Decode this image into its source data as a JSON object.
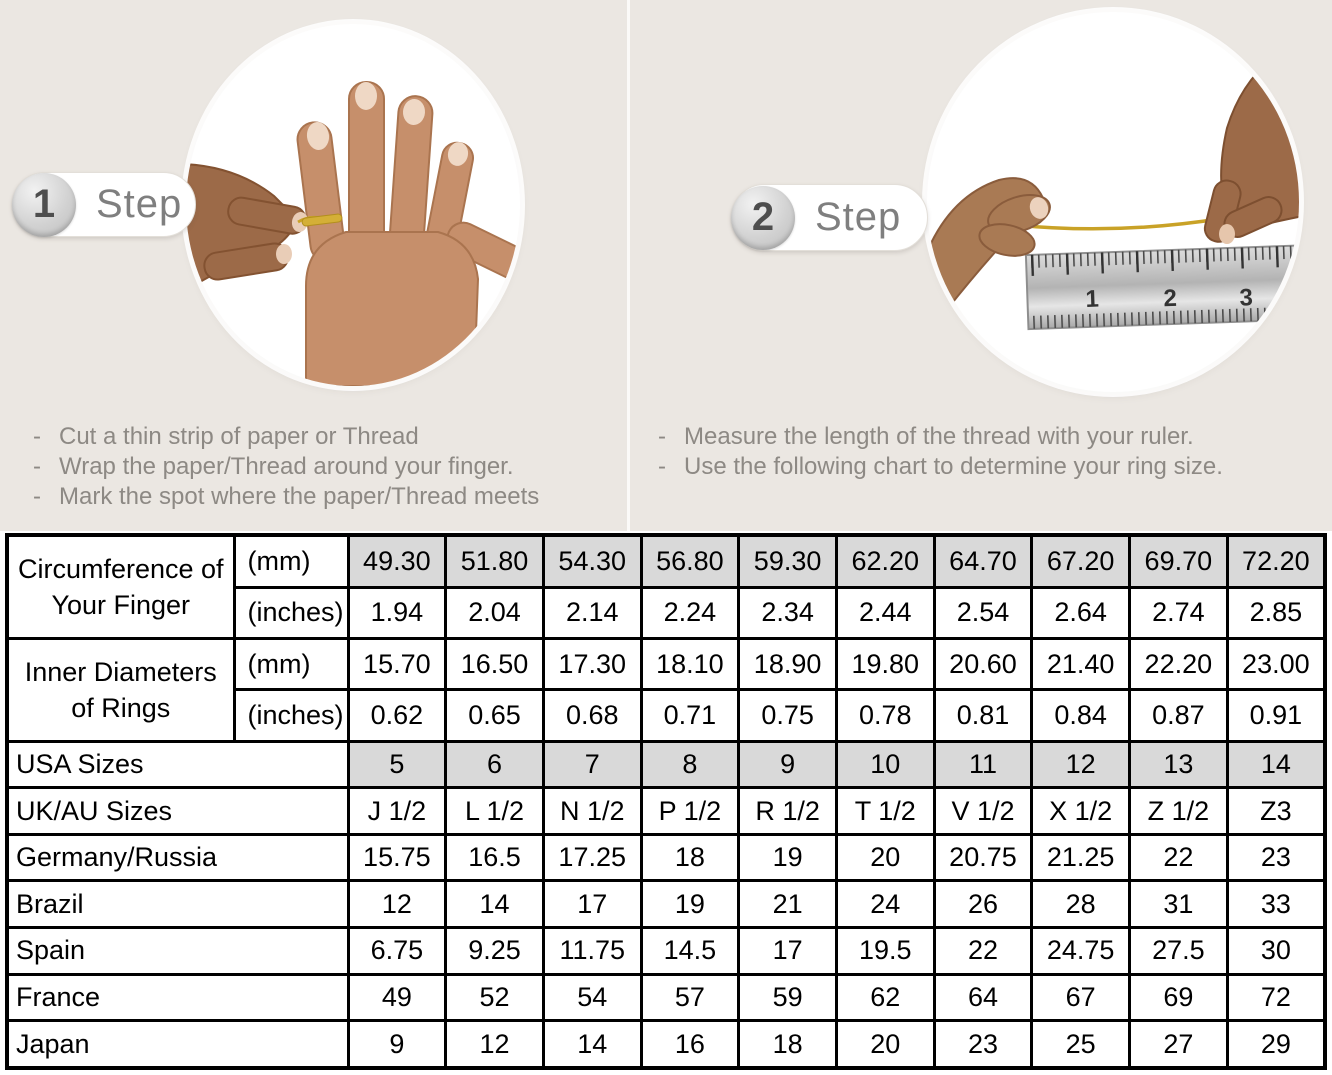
{
  "steps": [
    {
      "number": "1",
      "label": "Step",
      "bullets": [
        "Cut a thin strip of paper or Thread",
        "Wrap the paper/Thread around your finger.",
        "Mark the spot where the paper/Thread meets"
      ]
    },
    {
      "number": "2",
      "label": "Step",
      "bullets": [
        "Measure the length of the thread with your ruler.",
        "Use the following chart to determine your ring size."
      ],
      "ruler_marks": [
        "1",
        "2",
        "3"
      ]
    }
  ],
  "chart_data": {
    "type": "table",
    "row_groups": [
      {
        "label": "Circumference of Your Finger",
        "rows": [
          {
            "unit": "(mm)",
            "shaded": true,
            "values": [
              "49.30",
              "51.80",
              "54.30",
              "56.80",
              "59.30",
              "62.20",
              "64.70",
              "67.20",
              "69.70",
              "72.20"
            ]
          },
          {
            "unit": "(inches)",
            "shaded": false,
            "values": [
              "1.94",
              "2.04",
              "2.14",
              "2.24",
              "2.34",
              "2.44",
              "2.54",
              "2.64",
              "2.74",
              "2.85"
            ]
          }
        ]
      },
      {
        "label": "Inner Diameters of Rings",
        "rows": [
          {
            "unit": "(mm)",
            "shaded": false,
            "values": [
              "15.70",
              "16.50",
              "17.30",
              "18.10",
              "18.90",
              "19.80",
              "20.60",
              "21.40",
              "22.20",
              "23.00"
            ]
          },
          {
            "unit": "(inches)",
            "shaded": false,
            "values": [
              "0.62",
              "0.65",
              "0.68",
              "0.71",
              "0.75",
              "0.78",
              "0.81",
              "0.84",
              "0.87",
              "0.91"
            ]
          }
        ]
      }
    ],
    "country_rows": [
      {
        "label": "USA Sizes",
        "shaded": true,
        "values": [
          "5",
          "6",
          "7",
          "8",
          "9",
          "10",
          "11",
          "12",
          "13",
          "14"
        ]
      },
      {
        "label": "UK/AU Sizes",
        "shaded": false,
        "values": [
          "J 1/2",
          "L 1/2",
          "N 1/2",
          "P 1/2",
          "R 1/2",
          "T 1/2",
          "V 1/2",
          "X 1/2",
          "Z 1/2",
          "Z3"
        ]
      },
      {
        "label": "Germany/Russia",
        "shaded": false,
        "values": [
          "15.75",
          "16.5",
          "17.25",
          "18",
          "19",
          "20",
          "20.75",
          "21.25",
          "22",
          "23"
        ]
      },
      {
        "label": "Brazil",
        "shaded": false,
        "values": [
          "12",
          "14",
          "17",
          "19",
          "21",
          "24",
          "26",
          "28",
          "31",
          "33"
        ]
      },
      {
        "label": "Spain",
        "shaded": false,
        "values": [
          "6.75",
          "9.25",
          "11.75",
          "14.5",
          "17",
          "19.5",
          "22",
          "24.75",
          "27.5",
          "30"
        ]
      },
      {
        "label": "France",
        "shaded": false,
        "values": [
          "49",
          "52",
          "54",
          "57",
          "59",
          "62",
          "64",
          "67",
          "69",
          "72"
        ]
      },
      {
        "label": "Japan",
        "shaded": false,
        "values": [
          "9",
          "12",
          "14",
          "16",
          "18",
          "20",
          "23",
          "25",
          "27",
          "29"
        ]
      }
    ]
  },
  "colors": {
    "top_background": "#ebe7e2",
    "table_shaded_cell": "#d9d9d9",
    "table_border": "#000000",
    "step_text": "#7f7f7f",
    "bullet_text": "#8d8984",
    "thread_gold": "#c9a227",
    "skin_light": "#c68f6b",
    "skin_dark": "#9c6a48",
    "ruler_metal": "#c9c9c9"
  }
}
